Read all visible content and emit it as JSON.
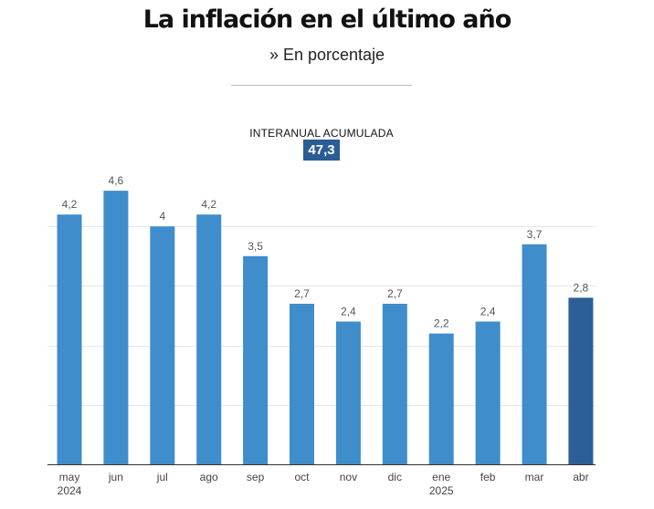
{
  "header": {
    "title": "La inflación en el último año",
    "subtitle": "» En porcentaje"
  },
  "cumulative": {
    "label": "INTERANUAL ACUMULADA",
    "value": "47,3"
  },
  "colors": {
    "bar": "#3f8dcb",
    "highlight": "#2c5f97",
    "grid": "#e6e6e6",
    "axis": "#333333",
    "value_label": "#555555",
    "tick_label": "#444444",
    "badge": "#2b5c95"
  },
  "chart_data": {
    "type": "bar",
    "title": "La inflación en el último año",
    "subtitle": "» En porcentaje",
    "categories": [
      [
        "may",
        "2024"
      ],
      [
        "jun"
      ],
      [
        "jul"
      ],
      [
        "ago"
      ],
      [
        "sep"
      ],
      [
        "oct"
      ],
      [
        "nov"
      ],
      [
        "dic"
      ],
      [
        "ene",
        "2025"
      ],
      [
        "feb"
      ],
      [
        "mar"
      ],
      [
        "abr"
      ]
    ],
    "values": [
      4.2,
      4.6,
      4.0,
      4.2,
      3.5,
      2.7,
      2.4,
      2.7,
      2.2,
      2.4,
      3.7,
      2.8
    ],
    "value_labels": [
      "4,2",
      "4,6",
      "4",
      "4,2",
      "3,5",
      "2,7",
      "2,4",
      "2,7",
      "2,2",
      "2,4",
      "3,7",
      "2,8"
    ],
    "highlight_index": 11,
    "ylim": [
      0,
      5
    ],
    "gridlines": [
      1,
      2,
      3,
      4
    ],
    "xlabel": "",
    "ylabel": "",
    "annotation": {
      "label": "INTERANUAL ACUMULADA",
      "value": "47,3"
    }
  }
}
